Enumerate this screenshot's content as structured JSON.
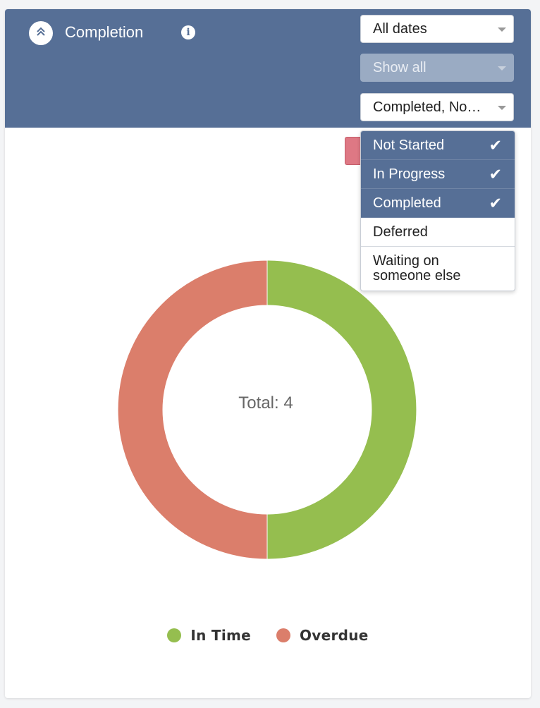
{
  "header": {
    "title": "Completion",
    "background_color": "#566f96"
  },
  "filters": {
    "dates": "All dates",
    "show": "Show all",
    "status": "Completed, No…"
  },
  "status_dropdown": {
    "items": [
      {
        "label": "Not Started",
        "selected": true
      },
      {
        "label": "In Progress",
        "selected": true
      },
      {
        "label": "Completed",
        "selected": true
      },
      {
        "label": "Deferred",
        "selected": false
      },
      {
        "label": "Waiting on someone else",
        "selected": false
      }
    ]
  },
  "chart_data": {
    "type": "pie",
    "style": "donut",
    "center_label": "Total: 4",
    "total": 4,
    "slices": [
      {
        "name": "In Time",
        "value": 2,
        "color": "#95be4f"
      },
      {
        "name": "Overdue",
        "value": 2,
        "color": "#db7e6b"
      }
    ],
    "legend": {
      "placement": "bottom-center",
      "items": [
        "In Time",
        "Overdue"
      ]
    }
  }
}
